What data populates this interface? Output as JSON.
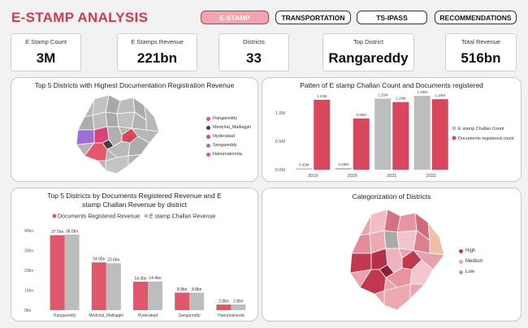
{
  "header": {
    "title": "E-STAMP ANALYSIS"
  },
  "nav": {
    "estamp": "E-STAMP",
    "transportation": "TRANSPORTATION",
    "tsipass": "TS-IPASS",
    "recommendations": "RECOMMENDATIONS"
  },
  "kpis": [
    {
      "label": "E Stamp Count",
      "value": "3M"
    },
    {
      "label": "E Stamps Revenue",
      "value": "221bn"
    },
    {
      "label": "Districts",
      "value": "33"
    },
    {
      "label": "Top District",
      "value": "Rangareddy"
    },
    {
      "label": "Total Revenue",
      "value": "516bn"
    }
  ],
  "map1": {
    "title": "Top 5 Districts with Highest Documentation Registration Revenue",
    "legend": [
      {
        "name": "Rangareddy",
        "color": "#e8566b"
      },
      {
        "name": "Medchal_Malkajgiri",
        "color": "#404040"
      },
      {
        "name": "Hyderabad",
        "color": "#d9427a"
      },
      {
        "name": "Sangareddy",
        "color": "#9b6fd6"
      },
      {
        "name": "Hanumakonda",
        "color": "#e8566b"
      }
    ]
  },
  "map2": {
    "title": "Categorization of Districts",
    "legend": [
      {
        "name": "High",
        "color": "#c2394f"
      },
      {
        "name": "Medium",
        "color": "#eba3ae"
      },
      {
        "name": "Low",
        "color": "#a9a9a9"
      }
    ]
  },
  "chart_data": [
    {
      "type": "bar",
      "title": "Patten of E stamp Challan Count and Documents registered",
      "categories": [
        "2019",
        "2020",
        "2021",
        "2022"
      ],
      "series": [
        {
          "name": "E stamp Challan Count",
          "color": "#bdbdbd",
          "values": [
            0.0,
            0.03,
            1.25,
            1.3
          ],
          "labels": [
            "0.00M",
            "0.03M",
            "1.25M",
            "1.30M"
          ]
        },
        {
          "name": "Documents registered count",
          "color": "#d9475c",
          "values": [
            1.23,
            0.9,
            1.19,
            1.24
          ],
          "labels": [
            "1.23M",
            "0.90M",
            "1.19M",
            "1.24M"
          ]
        }
      ],
      "yticks": [
        "0.0M",
        "0.5M",
        "1.0M"
      ],
      "ylim": [
        0,
        1.3
      ]
    },
    {
      "type": "bar",
      "title": "Top 5 Districts by Documents Registered Revenue and E stamp Challan Revenue by district",
      "categories": [
        "Rangareddy",
        "Medchal_Malkajgiri",
        "Hyderabad",
        "Sangareddy",
        "Hanumakonda"
      ],
      "series": [
        {
          "name": "Documents Registered Revenue",
          "color": "#e0566a",
          "values": [
            37.7,
            24.0,
            14.3,
            8.8,
            2.8
          ],
          "labels": [
            "37.7bn",
            "24.0bn",
            "14.3bn",
            "8.8bn",
            "2.8bn"
          ]
        },
        {
          "name": "E stamp Challan Revenue",
          "color": "#bdbdbd",
          "values": [
            38.0,
            23.6,
            14.4,
            8.8,
            2.8
          ],
          "labels": [
            "38.0bn",
            "23.6bn",
            "14.4bn",
            "8.8bn",
            "2.8bn"
          ]
        }
      ],
      "yticks": [
        "0bn",
        "10bn",
        "20bn",
        "30bn",
        "40bn"
      ],
      "ylim": [
        0,
        40
      ]
    }
  ]
}
